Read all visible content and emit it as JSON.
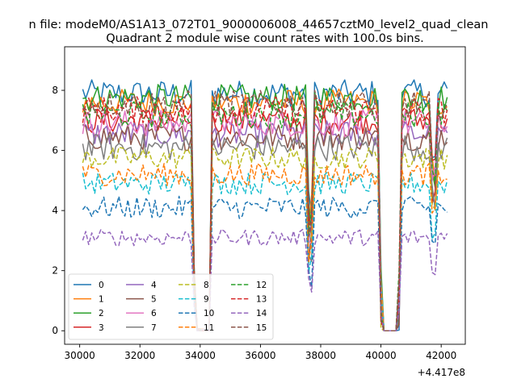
{
  "chart_data": {
    "type": "line",
    "suptitle": "n file: modeM0/AS1A13_072T01_9000006008_44657cztM0_level2_quad_clean",
    "title": "Quadrant 2 module wise count rates with 100.0s bins.",
    "xlabel": "",
    "ylabel": "",
    "x_offset_label": "+4.417e8",
    "xlim": [
      29500,
      42800
    ],
    "ylim": [
      -0.45,
      9.45
    ],
    "xticks": [
      30000,
      32000,
      34000,
      36000,
      38000,
      40000,
      42000
    ],
    "xtick_labels": [
      "30000",
      "32000",
      "34000",
      "36000",
      "38000",
      "40000",
      "42000"
    ],
    "yticks": [
      0,
      2,
      4,
      6,
      8
    ],
    "ytick_labels": [
      "0",
      "2",
      "4",
      "6",
      "8"
    ],
    "grid": false,
    "legend_position": "lower-left",
    "segments": [
      {
        "x_start": 30100,
        "x_end": 33750
      },
      {
        "x_start": 34450,
        "x_end": 37600
      },
      {
        "x_start": 37700,
        "x_end": 40000
      },
      {
        "x_start": 40650,
        "x_end": 42250
      }
    ],
    "drop_notes": "rates fall to ~0 between 33750-34450; sharp dip near 37650; rates at 0 from 40000 to 40600",
    "series": [
      {
        "name": "0",
        "style": "solid",
        "color": "#1f77b4",
        "level": 7.9
      },
      {
        "name": "1",
        "style": "solid",
        "color": "#ff7f0e",
        "level": 7.6
      },
      {
        "name": "2",
        "style": "solid",
        "color": "#2ca02c",
        "level": 7.75
      },
      {
        "name": "3",
        "style": "solid",
        "color": "#d62728",
        "level": 7.0
      },
      {
        "name": "4",
        "style": "solid",
        "color": "#9467bd",
        "level": 6.55
      },
      {
        "name": "5",
        "style": "solid",
        "color": "#8c564b",
        "level": 6.45
      },
      {
        "name": "6",
        "style": "solid",
        "color": "#e377c2",
        "level": 6.9
      },
      {
        "name": "7",
        "style": "solid",
        "color": "#7f7f7f",
        "level": 6.1
      },
      {
        "name": "8",
        "style": "dashed",
        "color": "#bcbd22",
        "level": 5.75
      },
      {
        "name": "9",
        "style": "dashed",
        "color": "#17becf",
        "level": 4.9
      },
      {
        "name": "10",
        "style": "dashed",
        "color": "#1f77b4",
        "level": 4.1
      },
      {
        "name": "11",
        "style": "dashed",
        "color": "#ff7f0e",
        "level": 5.2
      },
      {
        "name": "12",
        "style": "dashed",
        "color": "#2ca02c",
        "level": 7.2
      },
      {
        "name": "13",
        "style": "dashed",
        "color": "#d62728",
        "level": 7.35
      },
      {
        "name": "14",
        "style": "dashed",
        "color": "#9467bd",
        "level": 3.1
      },
      {
        "name": "15",
        "style": "dashed",
        "color": "#8c564b",
        "level": 7.55
      }
    ]
  }
}
